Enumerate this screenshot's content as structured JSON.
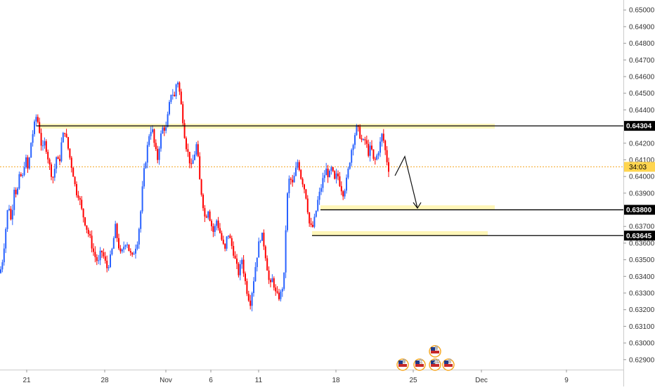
{
  "chart_data": {
    "type": "candlestick",
    "colors": {
      "up": "#2962ff",
      "down": "#ff0000",
      "resistance": "#000000",
      "zone": "#fff3a0",
      "current_line": "#f5a623",
      "tag_bg": "#000000",
      "clock_bg": "#ffd54f"
    },
    "y_axis": {
      "ylim": [
        0.6284,
        0.6506
      ],
      "ticks": [
        "0.65000",
        "0.64900",
        "0.64800",
        "0.64700",
        "0.64600",
        "0.64500",
        "0.64400",
        "0.64200",
        "0.64100",
        "0.64000",
        "0.63900",
        "0.63700",
        "0.63600",
        "0.63500",
        "0.63400",
        "0.63300",
        "0.63200",
        "0.63100",
        "0.63000",
        "0.62900"
      ]
    },
    "x_axis": {
      "labels": [
        {
          "text": "21"
        },
        {
          "text": "28"
        },
        {
          "text": "Nov"
        },
        {
          "text": "6"
        },
        {
          "text": "11"
        },
        {
          "text": "18"
        },
        {
          "text": "25"
        },
        {
          "text": "Dec"
        },
        {
          "text": "9"
        }
      ]
    },
    "levels": [
      {
        "label": "0.64304",
        "value": 0.64304
      },
      {
        "label": "0.63800",
        "value": 0.638
      },
      {
        "label": "0.63645",
        "value": 0.63645
      }
    ],
    "current_price": {
      "value": 0.64058,
      "clock": "34:03"
    },
    "events": [
      {
        "count": "8"
      },
      {
        "count": "2"
      },
      {
        "count": "20"
      },
      {
        "count": "5"
      },
      {
        "count": "8"
      }
    ],
    "price_path": [
      [
        0,
        0.6342
      ],
      [
        4,
        0.6351
      ],
      [
        8,
        0.6368
      ],
      [
        12,
        0.6385
      ],
      [
        16,
        0.6372
      ],
      [
        20,
        0.6394
      ],
      [
        24,
        0.6389
      ],
      [
        28,
        0.6401
      ],
      [
        32,
        0.6399
      ],
      [
        36,
        0.6412
      ],
      [
        40,
        0.6403
      ],
      [
        44,
        0.642
      ],
      [
        48,
        0.6429
      ],
      [
        52,
        0.6437
      ],
      [
        56,
        0.6428
      ],
      [
        60,
        0.6415
      ],
      [
        64,
        0.6421
      ],
      [
        68,
        0.6412
      ],
      [
        72,
        0.6403
      ],
      [
        76,
        0.6399
      ],
      [
        80,
        0.6412
      ],
      [
        84,
        0.6407
      ],
      [
        88,
        0.6422
      ],
      [
        92,
        0.6428
      ],
      [
        96,
        0.6419
      ],
      [
        100,
        0.641
      ],
      [
        104,
        0.6402
      ],
      [
        108,
        0.6391
      ],
      [
        112,
        0.6389
      ],
      [
        116,
        0.638
      ],
      [
        120,
        0.6374
      ],
      [
        124,
        0.6368
      ],
      [
        128,
        0.6363
      ],
      [
        132,
        0.6356
      ],
      [
        136,
        0.6351
      ],
      [
        140,
        0.6348
      ],
      [
        144,
        0.6356
      ],
      [
        148,
        0.6351
      ],
      [
        152,
        0.6345
      ],
      [
        156,
        0.6349
      ],
      [
        160,
        0.6357
      ],
      [
        164,
        0.637
      ],
      [
        168,
        0.636
      ],
      [
        172,
        0.6352
      ],
      [
        176,
        0.6358
      ],
      [
        180,
        0.6362
      ],
      [
        184,
        0.6355
      ],
      [
        188,
        0.6351
      ],
      [
        192,
        0.6357
      ],
      [
        196,
        0.6362
      ],
      [
        200,
        0.6378
      ],
      [
        204,
        0.64
      ],
      [
        208,
        0.6412
      ],
      [
        212,
        0.6425
      ],
      [
        216,
        0.643
      ],
      [
        220,
        0.6418
      ],
      [
        224,
        0.641
      ],
      [
        228,
        0.6423
      ],
      [
        232,
        0.643
      ],
      [
        236,
        0.6428
      ],
      [
        240,
        0.644
      ],
      [
        244,
        0.6452
      ],
      [
        248,
        0.6447
      ],
      [
        252,
        0.646
      ],
      [
        256,
        0.6449
      ],
      [
        260,
        0.6435
      ],
      [
        264,
        0.642
      ],
      [
        268,
        0.6413
      ],
      [
        272,
        0.6405
      ],
      [
        276,
        0.6412
      ],
      [
        280,
        0.642
      ],
      [
        284,
        0.6398
      ],
      [
        288,
        0.6386
      ],
      [
        292,
        0.6374
      ],
      [
        296,
        0.6381
      ],
      [
        300,
        0.6372
      ],
      [
        304,
        0.6366
      ],
      [
        308,
        0.6374
      ],
      [
        312,
        0.6368
      ],
      [
        316,
        0.6361
      ],
      [
        320,
        0.6355
      ],
      [
        324,
        0.6367
      ],
      [
        328,
        0.6361
      ],
      [
        332,
        0.6355
      ],
      [
        336,
        0.6347
      ],
      [
        340,
        0.6341
      ],
      [
        344,
        0.6351
      ],
      [
        348,
        0.6339
      ],
      [
        352,
        0.633
      ],
      [
        356,
        0.6324
      ],
      [
        360,
        0.6335
      ],
      [
        364,
        0.6348
      ],
      [
        368,
        0.6359
      ],
      [
        372,
        0.6366
      ],
      [
        376,
        0.6358
      ],
      [
        380,
        0.6346
      ],
      [
        384,
        0.6333
      ],
      [
        388,
        0.6339
      ],
      [
        392,
        0.633
      ],
      [
        396,
        0.6327
      ],
      [
        400,
        0.633
      ],
      [
        404,
        0.6338
      ],
      [
        408,
        0.6385
      ],
      [
        412,
        0.64
      ],
      [
        416,
        0.6395
      ],
      [
        420,
        0.6402
      ],
      [
        424,
        0.641
      ],
      [
        428,
        0.64
      ],
      [
        432,
        0.6395
      ],
      [
        436,
        0.6387
      ],
      [
        440,
        0.6372
      ],
      [
        444,
        0.6368
      ],
      [
        448,
        0.6375
      ],
      [
        452,
        0.6385
      ],
      [
        456,
        0.6392
      ],
      [
        460,
        0.6399
      ],
      [
        464,
        0.6404
      ],
      [
        468,
        0.64
      ],
      [
        472,
        0.6405
      ],
      [
        476,
        0.6397
      ],
      [
        480,
        0.6402
      ],
      [
        484,
        0.6395
      ],
      [
        488,
        0.639
      ],
      [
        492,
        0.6395
      ],
      [
        496,
        0.6405
      ],
      [
        500,
        0.6416
      ],
      [
        504,
        0.6424
      ],
      [
        508,
        0.643
      ],
      [
        512,
        0.6425
      ],
      [
        516,
        0.642
      ],
      [
        520,
        0.6422
      ],
      [
        524,
        0.6414
      ],
      [
        528,
        0.6418
      ],
      [
        532,
        0.6408
      ],
      [
        536,
        0.6412
      ],
      [
        540,
        0.6418
      ],
      [
        544,
        0.6426
      ],
      [
        548,
        0.6416
      ],
      [
        552,
        0.6406
      ],
      [
        555,
        0.6402
      ]
    ],
    "forecast_path": [
      [
        562,
        0.64005
      ],
      [
        576,
        0.6412
      ],
      [
        594,
        0.6381
      ]
    ]
  }
}
